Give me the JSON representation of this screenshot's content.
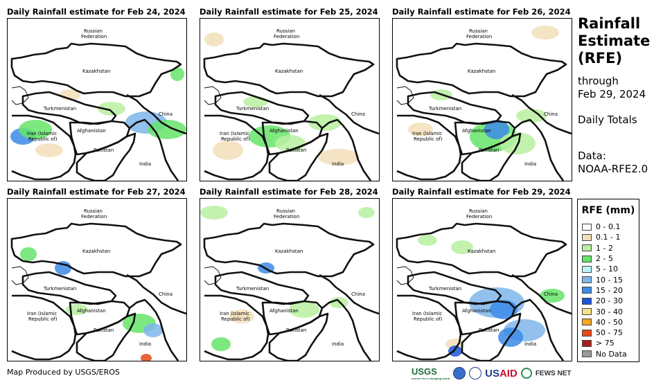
{
  "panels": [
    {
      "title": "Daily Rainfall estimate for Feb 24, 2024"
    },
    {
      "title": "Daily Rainfall estimate for Feb 25, 2024"
    },
    {
      "title": "Daily Rainfall estimate for Feb 26, 2024"
    },
    {
      "title": "Daily Rainfall estimate for Feb 27, 2024"
    },
    {
      "title": "Daily Rainfall estimate for Feb 28, 2024"
    },
    {
      "title": "Daily Rainfall estimate for Feb 29, 2024"
    }
  ],
  "labels": {
    "russia1": "Russian",
    "russia2": "Federation",
    "kazakhstan": "Kazakhstan",
    "turkmenistan": "Turkmenistan",
    "china": "China",
    "iran1": "Iran  (Islamic",
    "iran2": "Republic of)",
    "afghanistan": "Afghanistan",
    "pakistan": "Pakistan",
    "india": "India"
  },
  "side": {
    "title_lines": [
      "Rainfall",
      "Estimate",
      "(RFE)"
    ],
    "through": "through",
    "date": "Feb 29, 2024",
    "period": "Daily Totals",
    "data_label": "Data:",
    "data_source": "NOAA-RFE2.0"
  },
  "legend": {
    "title": "RFE (mm)",
    "items": [
      {
        "label": "0 - 0.1",
        "color": "#ffffff"
      },
      {
        "label": "0.1 - 1",
        "color": "#f2dfb9"
      },
      {
        "label": "1 - 2",
        "color": "#b8f0a0"
      },
      {
        "label": "2 - 5",
        "color": "#66e46a"
      },
      {
        "label": "5 - 10",
        "color": "#bff3f8"
      },
      {
        "label": "10 - 15",
        "color": "#7fb6ea"
      },
      {
        "label": "15 - 20",
        "color": "#3c8ae8"
      },
      {
        "label": "20 - 30",
        "color": "#1b55d6"
      },
      {
        "label": "30 - 40",
        "color": "#f7e48a"
      },
      {
        "label": "40 - 50",
        "color": "#f5a623"
      },
      {
        "label": "50 - 75",
        "color": "#e84a1a"
      },
      {
        "label": "> 75",
        "color": "#a51f1f"
      },
      {
        "label": "No Data",
        "color": "#999999"
      }
    ]
  },
  "footer": {
    "credit": "Map Produced by USGS/EROS",
    "usgs": "USGS",
    "usgs_tagline": "science for a changing world",
    "usaid_a": "US",
    "usaid_b": "AID",
    "fews": "FEWS NET"
  }
}
